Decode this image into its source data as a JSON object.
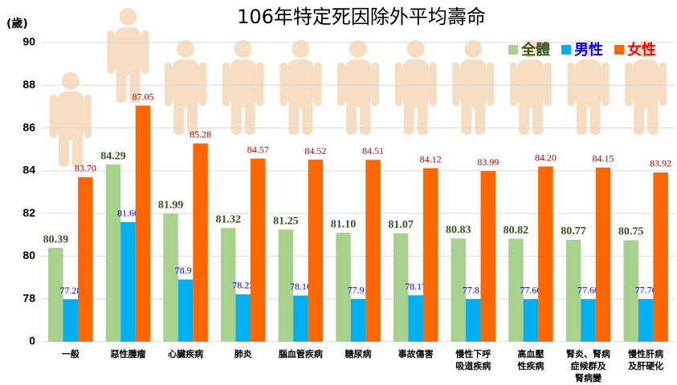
{
  "chart_data": {
    "type": "bar",
    "title": "106年特定死因除外平均壽命",
    "y_label": "(歲)",
    "categories": [
      "一般",
      "惡性腫瘤",
      "心臟疾病",
      "肺炎",
      "腦血管疾病",
      "糖尿病",
      "事故傷害",
      "慢性下呼\n吸道疾病",
      "高血壓\n性疾病",
      "腎炎、腎病\n症候群及\n腎病變",
      "慢性肝病\n及肝硬化"
    ],
    "series": [
      {
        "name": "全體",
        "color": "#a9d18e",
        "label_color": "#375623",
        "values": [
          80.39,
          84.29,
          81.99,
          81.32,
          81.25,
          81.1,
          81.07,
          80.83,
          80.82,
          80.77,
          80.75
        ],
        "value_labels": [
          "80.39",
          "84.29",
          "81.99",
          "81.32",
          "81.25",
          "81.10",
          "81.07",
          "80.83",
          "80.82",
          "80.77",
          "80.75"
        ]
      },
      {
        "name": "男性",
        "color": "#00b0f0",
        "label_color": "#0000ff",
        "values": [
          77.28,
          81.6,
          78.91,
          78.22,
          78.16,
          77.91,
          78.17,
          77.81,
          77.66,
          77.6,
          77.76
        ],
        "value_labels": [
          "77.28",
          "81.60",
          "78.91",
          "78.22",
          "78.16",
          "77.91",
          "78.17",
          "77.81",
          "77.66",
          "77.60",
          "77.76"
        ]
      },
      {
        "name": "女性",
        "color": "#ff6600",
        "label_color": "#c00000",
        "values": [
          83.7,
          87.05,
          85.28,
          84.57,
          84.52,
          84.51,
          84.12,
          83.99,
          84.2,
          84.15,
          83.92
        ],
        "value_labels": [
          "83.70",
          "87.05",
          "85.28",
          "84.57",
          "84.52",
          "84.51",
          "84.12",
          "83.99",
          "84.20",
          "84.15",
          "83.92"
        ]
      }
    ],
    "ylim": [
      0,
      90
    ],
    "yticks": [
      0,
      78,
      80,
      82,
      84,
      86,
      88,
      90
    ],
    "axis_break": [
      0,
      78
    ],
    "grid": true,
    "legend": "upper right"
  }
}
